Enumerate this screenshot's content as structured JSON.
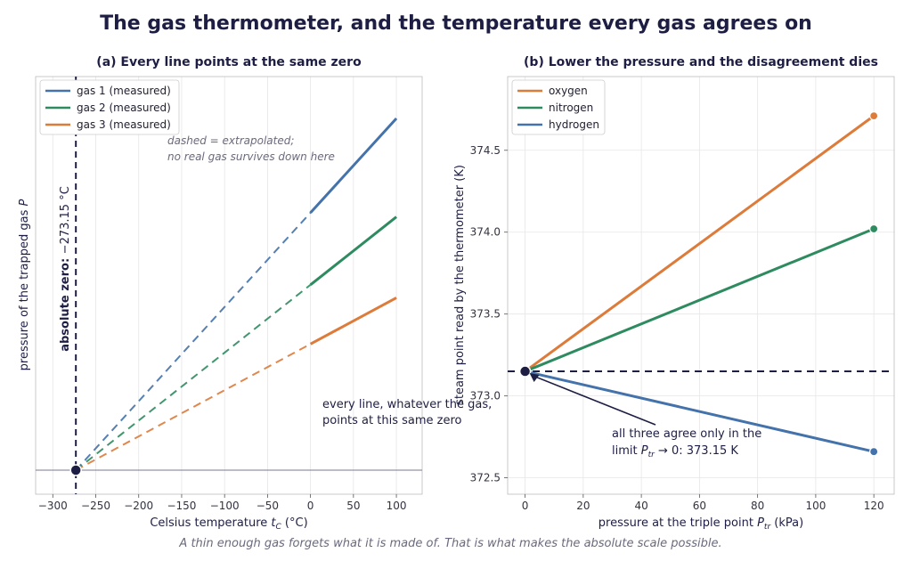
{
  "title": "The gas thermometer, and the temperature every gas agrees on",
  "footer": "A thin enough gas forgets what it is made of. That is what makes the absolute scale possible.",
  "colors": {
    "gas1": "#4472aa",
    "gas2": "#2e8b5f",
    "gas3": "#dd7b3a",
    "dark": "#1e1e44"
  },
  "chart_data": [
    {
      "type": "line",
      "title": "(a) Every line points at the same zero",
      "xlabel": "Celsius temperature  tC  (°C)",
      "ylabel": "pressure of the trapped gas  P",
      "xlim": [
        -320,
        130
      ],
      "xticks": [
        -300,
        -250,
        -200,
        -150,
        -100,
        -50,
        0,
        50,
        100
      ],
      "yticks_shown": false,
      "grid": true,
      "legend_position": "top-left",
      "series": [
        {
          "name": "gas 1 (measured)",
          "color": "#4472aa",
          "measured_x": [
            0,
            100
          ],
          "extrapolated_x": [
            -273.15,
            0
          ],
          "relative_slope": 1.0
        },
        {
          "name": "gas 2 (measured)",
          "color": "#2e8b5f",
          "measured_x": [
            0,
            100
          ],
          "extrapolated_x": [
            -273.15,
            0
          ],
          "relative_slope": 0.72
        },
        {
          "name": "gas 3 (measured)",
          "color": "#dd7b3a",
          "measured_x": [
            0,
            100
          ],
          "extrapolated_x": [
            -273.15,
            0
          ],
          "relative_slope": 0.49
        }
      ],
      "absolute_zero": {
        "x": -273.15,
        "label_bold": "absolute zero:",
        "label": "−273.15 °C"
      },
      "note_lines": [
        "dashed = extrapolated;",
        "no real gas survives down here"
      ],
      "annotation_lines": [
        "every line, whatever the gas,",
        "points at this same zero"
      ]
    },
    {
      "type": "line",
      "title": "(b) Lower the pressure and the disagreement dies",
      "xlabel": "pressure at the triple point  Ptr  (kPa)",
      "ylabel": "steam point read by the thermometer  (K)",
      "xlim": [
        -6,
        127
      ],
      "ylim": [
        372.4,
        374.95
      ],
      "xticks": [
        0,
        20,
        40,
        60,
        80,
        100,
        120
      ],
      "yticks": [
        372.5,
        373.0,
        373.5,
        374.0,
        374.5
      ],
      "grid": true,
      "legend_position": "top-left",
      "series": [
        {
          "name": "oxygen",
          "color": "#dd7b3a",
          "x": [
            0,
            120
          ],
          "y": [
            373.15,
            374.71
          ]
        },
        {
          "name": "nitrogen",
          "color": "#2e8b5f",
          "x": [
            0,
            120
          ],
          "y": [
            373.15,
            374.02
          ]
        },
        {
          "name": "hydrogen",
          "color": "#4472aa",
          "x": [
            0,
            120
          ],
          "y": [
            373.15,
            372.66
          ]
        }
      ],
      "reference_line": {
        "y": 373.15
      },
      "limit_point": {
        "x": 0,
        "y": 373.15
      },
      "annotation_lines": [
        "all three agree only in the",
        "limit Ptr → 0: 373.15 K"
      ]
    }
  ]
}
